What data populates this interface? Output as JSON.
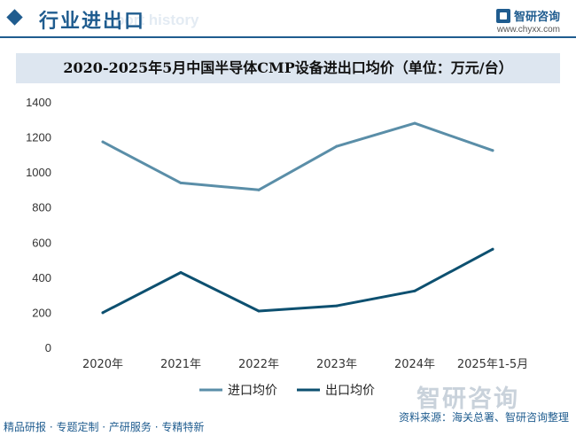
{
  "header": {
    "section_title": "行业进出口",
    "watermark_text": "port history",
    "brand_name": "智研咨询",
    "brand_url": "www.chyxx.com"
  },
  "chart_data": {
    "type": "line",
    "title": "2020-2025年5月中国半导体CMP设备进出口均价（单位：万元/台）",
    "categories": [
      "2020年",
      "2021年",
      "2022年",
      "2023年",
      "2024年",
      "2025年1-5月"
    ],
    "series": [
      {
        "name": "进口均价",
        "values": [
          1172,
          938,
          898,
          1147,
          1278,
          1123
        ],
        "color": "#5a8ea8"
      },
      {
        "name": "出口均价",
        "values": [
          198,
          427,
          207,
          237,
          322,
          560
        ],
        "color": "#0d5070"
      }
    ],
    "ylim": [
      0,
      1400
    ],
    "yticks": [
      "0",
      "200",
      "400",
      "600",
      "800",
      "1000",
      "1200",
      "1400"
    ],
    "ytick_values": [
      0,
      200,
      400,
      600,
      800,
      1000,
      1200,
      1400
    ],
    "grid": false,
    "legend": "bottom"
  },
  "footer": {
    "tags": "精品研报 · 专题定制 · 产研服务 · 专精特新",
    "source": "资料来源：海关总署、智研咨询整理"
  }
}
